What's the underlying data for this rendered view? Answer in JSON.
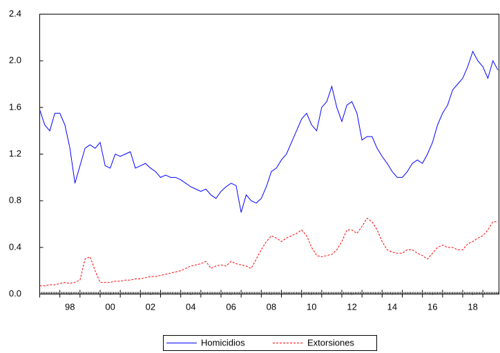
{
  "chart_data": {
    "type": "line",
    "x": [
      1997,
      1997.25,
      1997.5,
      1997.75,
      1998,
      1998.25,
      1998.5,
      1998.75,
      1999,
      1999.25,
      1999.5,
      1999.75,
      2000,
      2000.25,
      2000.5,
      2000.75,
      2001,
      2001.25,
      2001.5,
      2001.75,
      2002,
      2002.25,
      2002.5,
      2002.75,
      2003,
      2003.25,
      2003.5,
      2003.75,
      2004,
      2004.25,
      2004.5,
      2004.75,
      2005,
      2005.25,
      2005.5,
      2005.75,
      2006,
      2006.25,
      2006.5,
      2006.75,
      2007,
      2007.25,
      2007.5,
      2007.75,
      2008,
      2008.25,
      2008.5,
      2008.75,
      2009,
      2009.25,
      2009.5,
      2009.75,
      2010,
      2010.25,
      2010.5,
      2010.75,
      2011,
      2011.25,
      2011.5,
      2011.75,
      2012,
      2012.25,
      2012.5,
      2012.75,
      2013,
      2013.25,
      2013.5,
      2013.75,
      2014,
      2014.25,
      2014.5,
      2014.75,
      2015,
      2015.25,
      2015.5,
      2015.75,
      2016,
      2016.25,
      2016.5,
      2016.75,
      2017,
      2017.25,
      2017.5,
      2017.75,
      2018,
      2018.25,
      2018.5,
      2018.75,
      2019,
      2019.25,
      2019.5,
      2019.75
    ],
    "series": [
      {
        "name": "Homicidios",
        "color": "#0000ff",
        "dash": false,
        "values": [
          1.58,
          1.45,
          1.4,
          1.55,
          1.55,
          1.45,
          1.25,
          0.95,
          1.1,
          1.25,
          1.28,
          1.25,
          1.3,
          1.1,
          1.08,
          1.2,
          1.18,
          1.2,
          1.22,
          1.08,
          1.1,
          1.12,
          1.08,
          1.05,
          1.0,
          1.02,
          1.0,
          1.0,
          0.98,
          0.95,
          0.92,
          0.9,
          0.88,
          0.9,
          0.85,
          0.82,
          0.88,
          0.92,
          0.95,
          0.93,
          0.7,
          0.85,
          0.8,
          0.78,
          0.82,
          0.92,
          1.05,
          1.08,
          1.15,
          1.2,
          1.3,
          1.4,
          1.5,
          1.55,
          1.45,
          1.4,
          1.6,
          1.65,
          1.78,
          1.6,
          1.48,
          1.62,
          1.65,
          1.55,
          1.32,
          1.35,
          1.35,
          1.25,
          1.18,
          1.12,
          1.05,
          1.0,
          1.0,
          1.05,
          1.12,
          1.15,
          1.12,
          1.2,
          1.3,
          1.45,
          1.55,
          1.62,
          1.75,
          1.8,
          1.85,
          1.95,
          2.08,
          2.0,
          1.95,
          1.85,
          2.0,
          1.92
        ]
      },
      {
        "name": "Extorsiones",
        "color": "#ff0000",
        "dash": true,
        "values": [
          0.07,
          0.07,
          0.08,
          0.08,
          0.09,
          0.1,
          0.09,
          0.1,
          0.12,
          0.3,
          0.32,
          0.2,
          0.1,
          0.1,
          0.1,
          0.11,
          0.11,
          0.12,
          0.12,
          0.13,
          0.13,
          0.14,
          0.15,
          0.15,
          0.16,
          0.17,
          0.18,
          0.19,
          0.2,
          0.22,
          0.24,
          0.25,
          0.26,
          0.28,
          0.22,
          0.24,
          0.25,
          0.24,
          0.28,
          0.26,
          0.25,
          0.24,
          0.22,
          0.3,
          0.38,
          0.45,
          0.5,
          0.48,
          0.45,
          0.48,
          0.5,
          0.52,
          0.55,
          0.5,
          0.4,
          0.33,
          0.32,
          0.33,
          0.34,
          0.38,
          0.45,
          0.55,
          0.55,
          0.52,
          0.58,
          0.65,
          0.62,
          0.55,
          0.45,
          0.38,
          0.36,
          0.35,
          0.35,
          0.38,
          0.38,
          0.35,
          0.33,
          0.3,
          0.35,
          0.4,
          0.42,
          0.4,
          0.4,
          0.38,
          0.38,
          0.43,
          0.45,
          0.48,
          0.5,
          0.55,
          0.62,
          0.62
        ]
      }
    ],
    "xlim": [
      1997,
      2019.8
    ],
    "xticks": [
      {
        "value": 1998.5,
        "label": "98"
      },
      {
        "value": 2000.5,
        "label": "00"
      },
      {
        "value": 2002.5,
        "label": "02"
      },
      {
        "value": 2004.5,
        "label": "04"
      },
      {
        "value": 2006.5,
        "label": "06"
      },
      {
        "value": 2008.5,
        "label": "08"
      },
      {
        "value": 2010.5,
        "label": "10"
      },
      {
        "value": 2012.5,
        "label": "12"
      },
      {
        "value": 2014.5,
        "label": "14"
      },
      {
        "value": 2016.5,
        "label": "16"
      },
      {
        "value": 2018.5,
        "label": "18"
      }
    ],
    "ylim": [
      0,
      2.4
    ],
    "yticks": [
      {
        "value": 0,
        "label": "0.0"
      },
      {
        "value": 0.4,
        "label": "0.4"
      },
      {
        "value": 0.8,
        "label": "0.8"
      },
      {
        "value": 1.2,
        "label": "1.2"
      },
      {
        "value": 1.6,
        "label": "1.6"
      },
      {
        "value": 2.0,
        "label": "2.0"
      },
      {
        "value": 2.4,
        "label": "2.4"
      }
    ],
    "grid": false
  }
}
